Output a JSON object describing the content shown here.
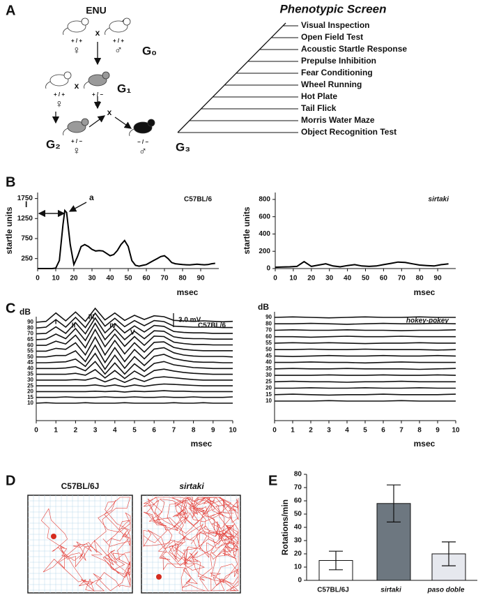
{
  "panel_labels": [
    "A",
    "B",
    "C",
    "D",
    "E"
  ],
  "panel_a": {
    "mutagen": "ENU",
    "cross": "x",
    "generations": [
      "G₀",
      "G₁",
      "G₂",
      "G₃"
    ],
    "mice": [
      {
        "genotype": "+ / +",
        "sex": "♀"
      },
      {
        "genotype": "+ / +",
        "sex": "♂"
      },
      {
        "genotype": "+ / +",
        "sex": "♀"
      },
      {
        "genotype": "+ / −",
        "sex": "♂"
      },
      {
        "genotype": "+ / −",
        "sex": "♀"
      },
      {
        "genotype": "− / −",
        "sex": "♂"
      }
    ],
    "screen": {
      "title": "Phenotypic Screen",
      "tests": [
        "Visual Inspection",
        "Open Field Test",
        "Acoustic Startle Response",
        "Prepulse Inhibition",
        "Fear Conditioning",
        "Wheel Running",
        "Hot Plate",
        "Tail Flick",
        "Morris Water Maze",
        "Object Recognition Test"
      ]
    }
  },
  "panel_d": {
    "titles": [
      "C57BL/6J",
      "sirtaki"
    ]
  },
  "chart_data": [
    {
      "type": "line",
      "label": "C57BL/6",
      "annotations": [
        "I",
        "a"
      ],
      "ylabel": "startle units",
      "xlabel": "msec",
      "x": [
        0,
        2,
        4,
        6,
        8,
        10,
        12,
        14,
        15,
        16,
        18,
        20,
        22,
        24,
        26,
        28,
        30,
        32,
        34,
        36,
        38,
        40,
        42,
        44,
        46,
        48,
        50,
        52,
        54,
        56,
        58,
        60,
        62,
        64,
        66,
        68,
        70,
        72,
        74,
        76,
        78,
        80,
        82,
        84,
        86,
        88,
        90,
        92,
        94,
        96,
        98
      ],
      "values": [
        0,
        0,
        0,
        0,
        0,
        10,
        200,
        1100,
        1450,
        1400,
        600,
        100,
        300,
        550,
        600,
        550,
        480,
        440,
        450,
        440,
        380,
        320,
        350,
        450,
        600,
        700,
        550,
        200,
        80,
        60,
        80,
        100,
        150,
        200,
        250,
        300,
        320,
        250,
        150,
        120,
        110,
        100,
        95,
        90,
        100,
        110,
        100,
        95,
        100,
        120,
        130
      ],
      "xlim": [
        0,
        100
      ],
      "xticks": [
        0,
        10,
        20,
        30,
        40,
        50,
        60,
        70,
        80,
        90
      ],
      "ylim": [
        0,
        1900
      ],
      "yticks": [
        250,
        750,
        1250,
        1750
      ],
      "color": "#000000"
    },
    {
      "type": "line",
      "label": "sirtaki",
      "ylabel": "startle units",
      "xlabel": "msec",
      "x": [
        0,
        4,
        8,
        12,
        16,
        20,
        24,
        28,
        32,
        36,
        40,
        44,
        48,
        52,
        56,
        60,
        64,
        68,
        72,
        76,
        80,
        84,
        88,
        92,
        96
      ],
      "values": [
        15,
        18,
        20,
        25,
        80,
        25,
        40,
        55,
        30,
        20,
        35,
        45,
        30,
        25,
        30,
        45,
        60,
        75,
        70,
        55,
        40,
        35,
        30,
        45,
        55
      ],
      "xlim": [
        0,
        100
      ],
      "xticks": [
        0,
        10,
        20,
        30,
        40,
        50,
        60,
        70,
        80,
        90
      ],
      "ylim": [
        0,
        880
      ],
      "yticks": [
        0,
        200,
        400,
        600,
        800
      ],
      "color": "#000000"
    },
    {
      "type": "waveform",
      "label": "C57BL/6",
      "y_title": "dB",
      "xlabel": "msec",
      "peaks": [
        "I",
        "II",
        "III",
        "IV",
        "V"
      ],
      "scale_bar": {
        "value": 3,
        "label": "3.0 mV"
      },
      "levels": [
        "90",
        "80",
        "70",
        "65",
        "60",
        "55",
        "50",
        "45",
        "40",
        "35",
        "30",
        "25",
        "20",
        "15",
        "10"
      ],
      "x": [
        0,
        0.5,
        1,
        1.5,
        2,
        2.5,
        3,
        3.5,
        4,
        4.5,
        5,
        5.5,
        6,
        6.5,
        7,
        7.5,
        8,
        8.5,
        9,
        9.5,
        10
      ],
      "traces": [
        [
          0,
          0.2,
          2.0,
          0.3,
          2.2,
          0.2,
          3.0,
          0.5,
          2.0,
          0.4,
          1.5,
          0.6,
          1.4,
          1.2,
          0.4,
          0.3,
          0.2,
          0.3,
          0.2,
          0.1,
          0.2
        ],
        [
          0,
          0.2,
          1.8,
          0.2,
          2.3,
          0.1,
          3.2,
          0.4,
          2.1,
          0.3,
          1.6,
          0.5,
          1.6,
          1.4,
          0.4,
          0.3,
          0.2,
          0.2,
          0.2,
          0.1,
          0.1
        ],
        [
          0,
          0.1,
          1.5,
          0.1,
          2.4,
          0,
          3.4,
          0.2,
          2.2,
          0.2,
          1.7,
          0.4,
          1.8,
          1.6,
          0.5,
          0.3,
          0.2,
          0.2,
          0.1,
          0.1,
          0.1
        ],
        [
          0,
          0.1,
          1.2,
          0.2,
          2.4,
          -0.2,
          3.5,
          0,
          2.3,
          0,
          1.8,
          0.2,
          1.9,
          1.8,
          0.6,
          0.3,
          0.2,
          0.2,
          0.1,
          0.1,
          0.1
        ],
        [
          0,
          0,
          0.9,
          0.3,
          2.2,
          -0.5,
          3.4,
          -0.3,
          2.4,
          -0.2,
          1.9,
          0,
          2.0,
          1.9,
          0.7,
          0.4,
          0.2,
          0.2,
          0.1,
          0.1,
          0.1
        ],
        [
          0,
          0,
          0.6,
          0.4,
          1.8,
          -0.8,
          3.0,
          -0.8,
          2.3,
          -0.6,
          1.8,
          -0.2,
          1.9,
          2.0,
          0.8,
          0.4,
          0.2,
          0.1,
          0.1,
          0.1,
          0.1
        ],
        [
          0,
          0,
          0.3,
          0.3,
          1.3,
          -1.0,
          2.5,
          -1.2,
          2.0,
          -1.0,
          1.6,
          -0.4,
          1.7,
          2.0,
          0.9,
          0.4,
          0.2,
          0.1,
          0.1,
          0.1,
          0
        ],
        [
          0,
          0,
          0.1,
          0.2,
          0.8,
          -0.8,
          2.0,
          -1.4,
          1.6,
          -1.2,
          1.3,
          -0.6,
          1.4,
          1.8,
          0.9,
          0.5,
          0.2,
          0.1,
          0.1,
          0,
          0
        ],
        [
          0,
          0,
          0,
          0.1,
          0.4,
          -0.5,
          1.5,
          -1.2,
          1.2,
          -1.2,
          1.0,
          -0.6,
          1.1,
          1.5,
          0.8,
          0.5,
          0.2,
          0.1,
          0,
          0,
          0
        ],
        [
          0,
          0,
          0,
          0,
          0.2,
          -0.2,
          1.0,
          -0.8,
          0.8,
          -0.9,
          0.7,
          -0.5,
          0.8,
          1.1,
          0.7,
          0.4,
          0.2,
          0.1,
          0,
          0,
          0
        ],
        [
          0,
          0,
          0,
          0,
          0.1,
          0,
          0.5,
          -0.4,
          0.4,
          -0.5,
          0.4,
          -0.3,
          0.5,
          0.7,
          0.5,
          0.3,
          0.1,
          0,
          0,
          0,
          0
        ],
        [
          0,
          0,
          0,
          0,
          0,
          0,
          0.2,
          -0.1,
          0.2,
          -0.2,
          0.2,
          -0.1,
          0.2,
          0.4,
          0.3,
          0.2,
          0.1,
          0,
          0,
          0,
          0
        ],
        [
          0,
          0,
          0,
          0,
          0,
          0,
          0.1,
          0,
          0.1,
          -0.1,
          0.1,
          0,
          0.1,
          0.2,
          0.1,
          0.1,
          0,
          0,
          0,
          0,
          0
        ],
        [
          0,
          0,
          0,
          0.1,
          0,
          0,
          0,
          0.1,
          0,
          0,
          0.1,
          0,
          0,
          0.1,
          0,
          0,
          0.1,
          0,
          0,
          0,
          0.1
        ],
        [
          0,
          0.1,
          0,
          0,
          0,
          0.1,
          0,
          0,
          0,
          0.1,
          0,
          0,
          0,
          0,
          0.1,
          0,
          0,
          0.1,
          0,
          0,
          0
        ]
      ],
      "xlim": [
        0,
        10
      ],
      "xticks": [
        0,
        1,
        2,
        3,
        4,
        5,
        6,
        7,
        8,
        9,
        10
      ]
    },
    {
      "type": "waveform",
      "label": "hokey-pokey",
      "y_title": "dB",
      "xlabel": "msec",
      "levels": [
        "90",
        "80",
        "70",
        "60",
        "55",
        "50",
        "45",
        "40",
        "35",
        "30",
        "25",
        "20",
        "15",
        "10"
      ],
      "x": [
        0,
        1,
        2,
        3,
        4,
        5,
        6,
        7,
        8,
        9,
        10
      ],
      "traces": [
        [
          0,
          0.1,
          0,
          -0.1,
          0,
          0.1,
          0,
          0,
          0.1,
          0,
          0
        ],
        [
          0,
          0,
          0.1,
          0,
          -0.1,
          0,
          0.1,
          0,
          0,
          0.1,
          0
        ],
        [
          0,
          0.1,
          0,
          0,
          0.1,
          0,
          0,
          -0.1,
          0,
          0,
          0.1
        ],
        [
          0,
          0,
          -0.1,
          0,
          0.1,
          0,
          0,
          0.1,
          0,
          0,
          0
        ],
        [
          0,
          0.1,
          0,
          0.1,
          0,
          -0.1,
          0,
          0,
          0.1,
          0,
          0
        ],
        [
          0,
          0,
          0.1,
          0,
          0,
          0.1,
          0,
          0,
          0,
          -0.1,
          0
        ],
        [
          0,
          -0.1,
          0,
          0.1,
          0,
          0,
          0.1,
          0,
          0,
          0.1,
          0
        ],
        [
          0,
          0,
          0.1,
          0,
          0,
          -0.1,
          0,
          0.1,
          0,
          0,
          0
        ],
        [
          0,
          0.1,
          0,
          0,
          0.1,
          0,
          0,
          0,
          -0.1,
          0,
          0.1
        ],
        [
          0,
          0,
          0,
          0.1,
          0,
          0,
          0.1,
          0,
          0,
          0.1,
          0
        ],
        [
          0,
          0.1,
          0,
          0,
          -0.1,
          0,
          0,
          0.1,
          0,
          0,
          0
        ],
        [
          0,
          0,
          0.1,
          0,
          0,
          0.1,
          0,
          0,
          0.1,
          0,
          0
        ],
        [
          0,
          0.1,
          0,
          -0.1,
          0,
          0,
          0.1,
          0,
          0,
          0,
          0.1
        ],
        [
          0,
          0,
          0,
          0.1,
          0,
          0,
          0,
          0.1,
          0,
          0,
          0
        ]
      ],
      "xlim": [
        0,
        10
      ],
      "xticks": [
        0,
        1,
        2,
        3,
        4,
        5,
        6,
        7,
        8,
        9,
        10
      ]
    },
    {
      "type": "bar",
      "ylabel": "Rotations/min",
      "categories": [
        "C57BL/6J",
        "sirtaki",
        "paso doble"
      ],
      "values": [
        15,
        58,
        20
      ],
      "errors": [
        7,
        14,
        9
      ],
      "colors": [
        "#ffffff",
        "#6d7780",
        "#e6e8ee"
      ],
      "ylim": [
        0,
        80
      ],
      "yticks": [
        0,
        10,
        20,
        30,
        40,
        50,
        60,
        70,
        80
      ]
    }
  ]
}
